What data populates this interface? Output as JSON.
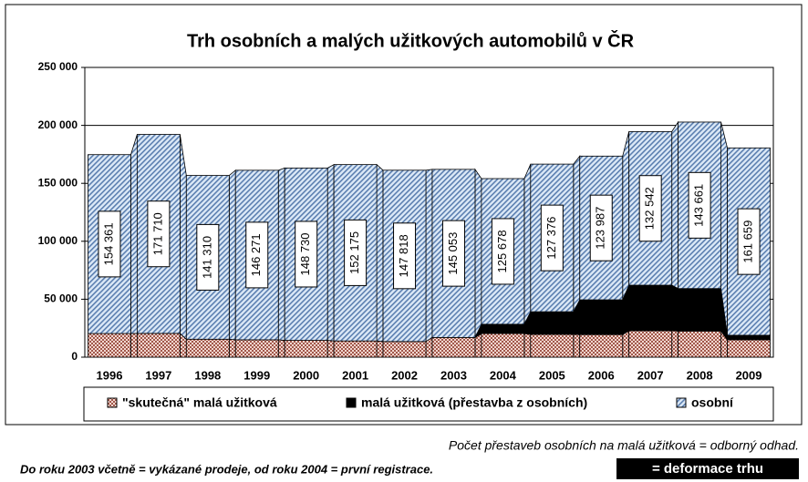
{
  "chart_data": {
    "type": "stacked_bar",
    "title": "Trh osobních a malých užitkových automobilů v ČR",
    "categories": [
      "1996",
      "1997",
      "1998",
      "1999",
      "2000",
      "2001",
      "2002",
      "2003",
      "2004",
      "2005",
      "2006",
      "2007",
      "2008",
      "2009"
    ],
    "series": [
      {
        "name": "\"skutečná\" malá užitková",
        "color": "#c98a7e",
        "values": [
          20400,
          20500,
          15500,
          15000,
          14500,
          14000,
          13500,
          17000,
          20400,
          19700,
          19500,
          22800,
          22500,
          15000
        ]
      },
      {
        "name": "malá užitková (přestavba z osobních)",
        "color": "#000000",
        "values": [
          0,
          0,
          0,
          0,
          0,
          0,
          0,
          0,
          8000,
          19500,
          30000,
          39300,
          36700,
          3900
        ]
      },
      {
        "name": "osobní",
        "color": "#a9c6e8",
        "values": [
          154361,
          171710,
          141310,
          146271,
          148730,
          152175,
          147818,
          145053,
          125678,
          127376,
          123987,
          132542,
          143661,
          161659
        ],
        "value_labels": [
          "154 361",
          "171 710",
          "141 310",
          "146 271",
          "148 730",
          "152 175",
          "147 818",
          "145 053",
          "125 678",
          "127 376",
          "123 987",
          "132 542",
          "143 661",
          "161 659"
        ]
      }
    ],
    "ylim": [
      0,
      250000
    ],
    "yticks": [
      {
        "value": 0,
        "label": "0"
      },
      {
        "value": 50000,
        "label": "50 000"
      },
      {
        "value": 100000,
        "label": "100 000"
      },
      {
        "value": 150000,
        "label": "150 000"
      },
      {
        "value": 200000,
        "label": "200 000"
      },
      {
        "value": 250000,
        "label": "250 000"
      }
    ],
    "grid": true,
    "legend": "bottom",
    "notes": [
      "Počet přestaveb osobních na malá užitková = odborný odhad.",
      "Do roku 2003 včetně = vykázané prodeje, od roku 2004 = první registrace.",
      "= deformace trhu"
    ]
  }
}
